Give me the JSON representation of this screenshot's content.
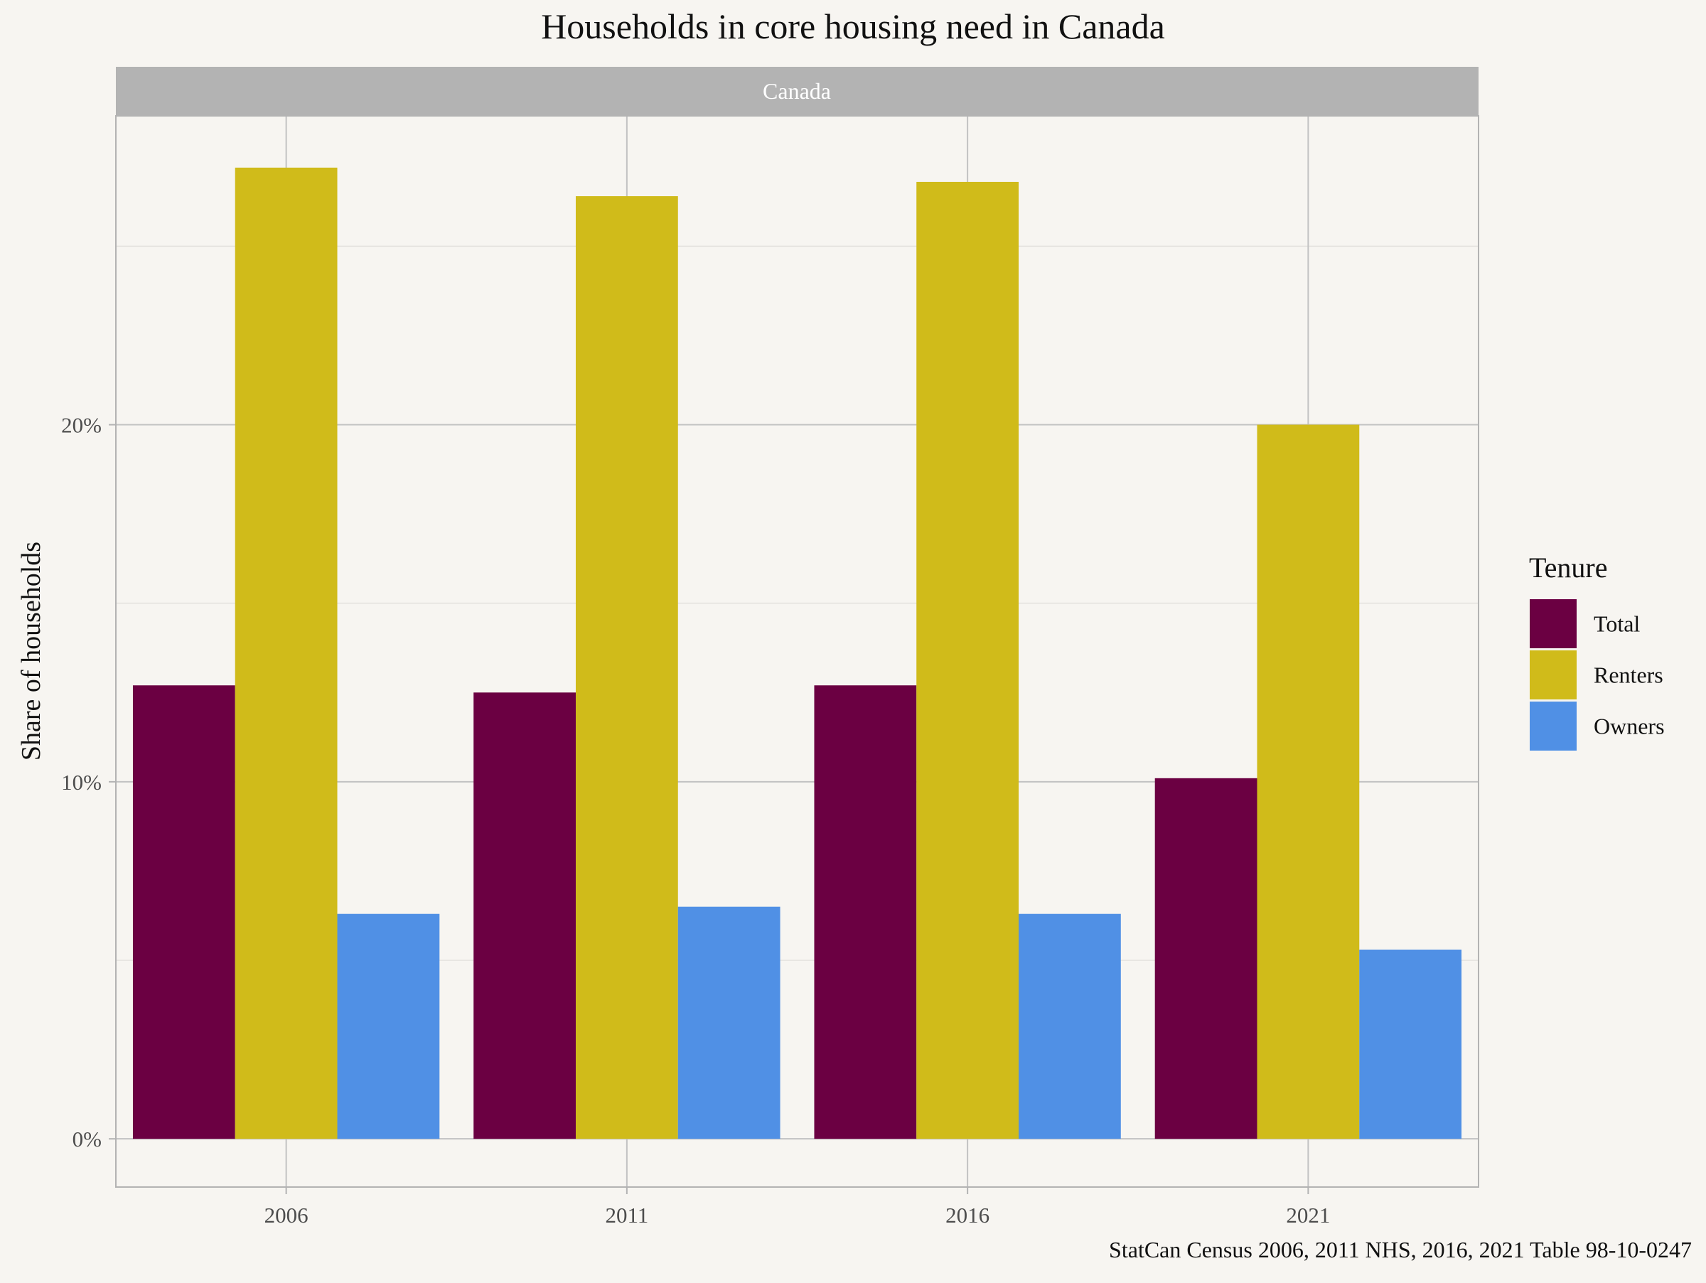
{
  "chart_data": {
    "type": "bar",
    "title": "Households in core housing need in Canada",
    "facet_label": "Canada",
    "ylabel": "Share of households",
    "xlabel": "",
    "caption": "StatCan Census 2006, 2011 NHS, 2016, 2021 Table 98-10-0247",
    "categories": [
      "2006",
      "2011",
      "2016",
      "2021"
    ],
    "y_ticks": [
      {
        "value": 0,
        "label": "0%"
      },
      {
        "value": 0.1,
        "label": "10%"
      },
      {
        "value": 0.2,
        "label": "20%"
      }
    ],
    "ylim": [
      -0.0135,
      0.2865
    ],
    "grid": true,
    "legend": {
      "title": "Tenure",
      "position": "right"
    },
    "series": [
      {
        "name": "Total",
        "color": "#6b0042",
        "values": [
          0.127,
          0.125,
          0.127,
          0.101
        ]
      },
      {
        "name": "Renters",
        "color": "#d0bb1a",
        "values": [
          0.272,
          0.264,
          0.268,
          0.2
        ]
      },
      {
        "name": "Owners",
        "color": "#5090e5",
        "values": [
          0.063,
          0.065,
          0.063,
          0.053
        ]
      }
    ]
  }
}
